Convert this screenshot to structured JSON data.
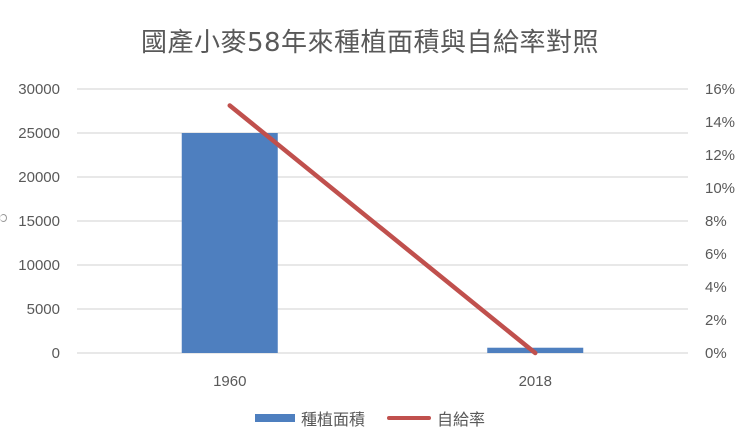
{
  "title": "國產小麥58年來種植面積與自給率對照",
  "legend": [
    {
      "label": "種植面積",
      "type": "bar",
      "color": "#4e7fbf"
    },
    {
      "label": "自給率",
      "type": "line",
      "color": "#c0504d"
    }
  ],
  "axes": {
    "left_ticks": [
      "30000",
      "25000",
      "20000",
      "15000",
      "10000",
      "5000",
      "0"
    ],
    "right_ticks": [
      "16%",
      "14%",
      "12%",
      "10%",
      "8%",
      "6%",
      "4%",
      "2%",
      "0%"
    ],
    "x_ticks": [
      "1960",
      "2018"
    ]
  },
  "chart_data": {
    "type": "bar",
    "title": "國產小麥58年來種植面積與自給率對照",
    "categories": [
      "1960",
      "2018"
    ],
    "series": [
      {
        "name": "種植面積",
        "type": "bar",
        "axis": "left",
        "values": [
          25000,
          600
        ],
        "color": "#4e7fbf"
      },
      {
        "name": "自給率",
        "type": "line",
        "axis": "right",
        "values": [
          0.15,
          0.0
        ],
        "color": "#c0504d"
      }
    ],
    "xlabel": "",
    "ylabel": "",
    "ylim": [
      0,
      30000
    ],
    "y2lim": [
      0,
      0.16
    ],
    "grid": true,
    "legend_position": "bottom"
  }
}
